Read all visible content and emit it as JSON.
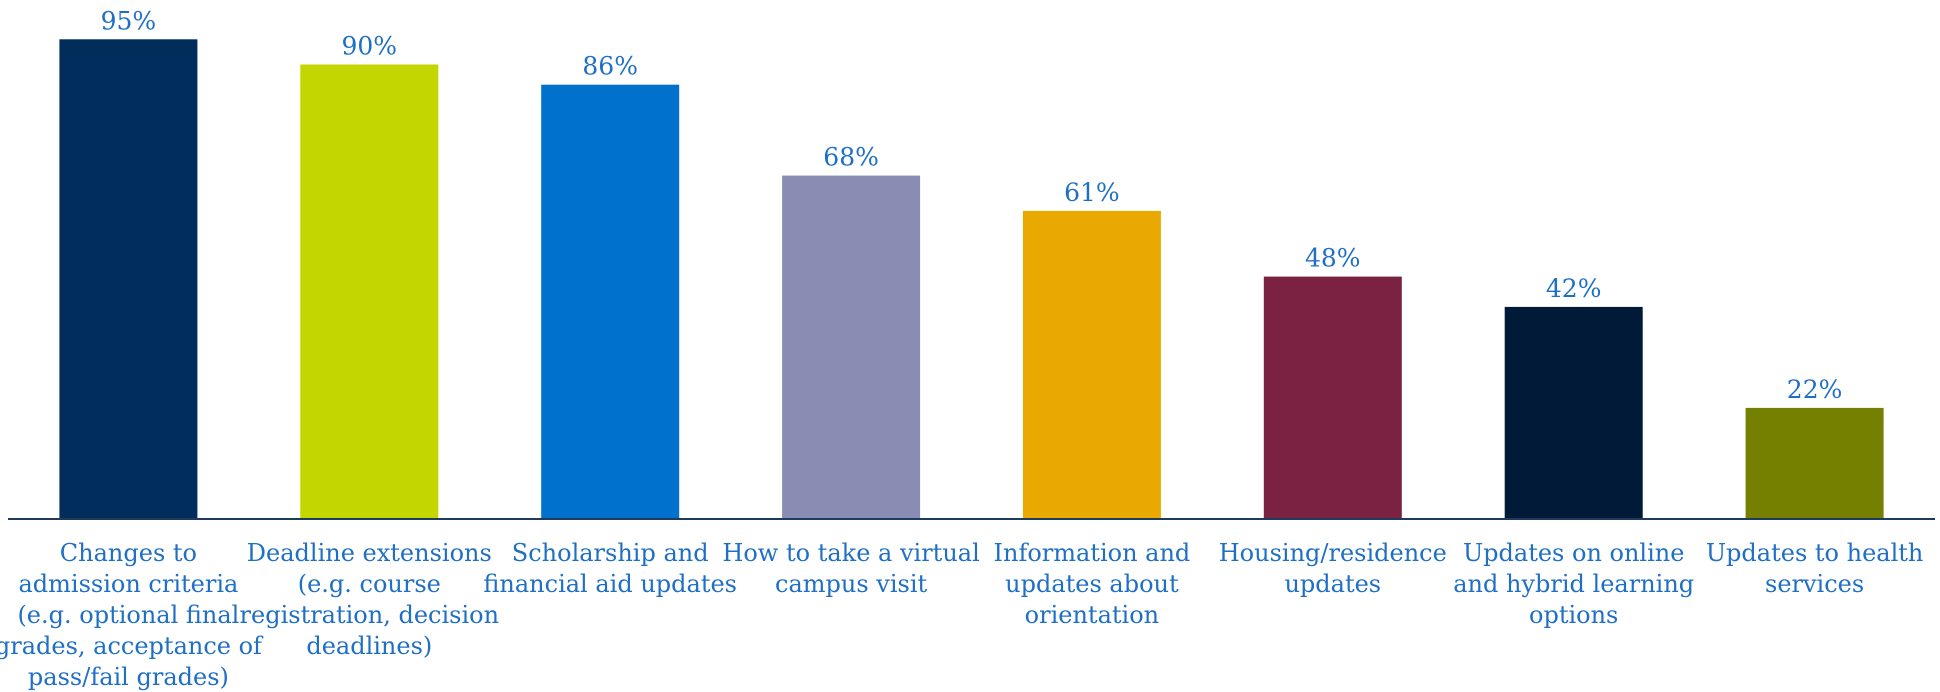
{
  "chart_data": {
    "type": "bar",
    "categories": [
      [
        "Changes to",
        "admission criteria",
        "(e.g. optional final",
        "grades, acceptance of",
        "pass/fail grades)"
      ],
      [
        "Deadline extensions",
        "(e.g. course",
        "registration, decision",
        "deadlines)"
      ],
      [
        "Scholarship and",
        "financial aid updates"
      ],
      [
        "How to take a virtual",
        "campus visit"
      ],
      [
        "Information and",
        "updates about",
        "orientation"
      ],
      [
        "Housing/residence",
        "updates"
      ],
      [
        "Updates on online",
        "and hybrid learning",
        "options"
      ],
      [
        "Updates to health",
        "services"
      ]
    ],
    "values": [
      95,
      90,
      86,
      68,
      61,
      48,
      42,
      22
    ],
    "data_labels": [
      "95%",
      "90%",
      "86%",
      "68%",
      "61%",
      "48%",
      "42%",
      "22%"
    ],
    "colors": [
      "#002d5b",
      "#c4d600",
      "#0072ce",
      "#8a8db3",
      "#eaa900",
      "#7b2142",
      "#001a38",
      "#768000"
    ],
    "axis_color": "#1f3a5a",
    "label_color": "#1f6fc5",
    "ylim": [
      0,
      100
    ],
    "grid": false,
    "legend": "none",
    "title": "",
    "xlabel": "",
    "ylabel": ""
  }
}
